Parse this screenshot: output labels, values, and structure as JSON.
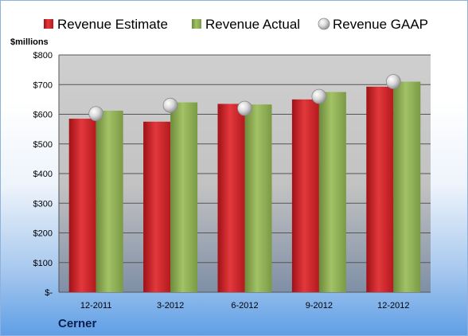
{
  "company": "Cerner",
  "colors": {
    "estimate": "#d42227",
    "actual": "#8fae54",
    "gaap": "#c9c9c9"
  },
  "chart_data": {
    "type": "bar",
    "title": "",
    "xlabel": "",
    "ylabel": "$millions",
    "ylim": [
      0,
      800
    ],
    "yticks": [
      0,
      100,
      200,
      300,
      400,
      500,
      600,
      700,
      800
    ],
    "ytick_labels": [
      "$-",
      "$100",
      "$200",
      "$300",
      "$400",
      "$500",
      "$600",
      "$700",
      "$800"
    ],
    "categories": [
      "12-2011",
      "3-2012",
      "6-2012",
      "9-2012",
      "12-2012"
    ],
    "legend_position": "top",
    "grid": true,
    "series": [
      {
        "name": "Revenue Estimate",
        "kind": "bar",
        "values": [
          585,
          575,
          635,
          650,
          693
        ]
      },
      {
        "name": "Revenue Actual",
        "kind": "bar",
        "values": [
          612,
          640,
          633,
          675,
          710
        ]
      },
      {
        "name": "Revenue GAAP",
        "kind": "marker",
        "values": [
          602,
          630,
          620,
          660,
          710
        ]
      }
    ]
  }
}
